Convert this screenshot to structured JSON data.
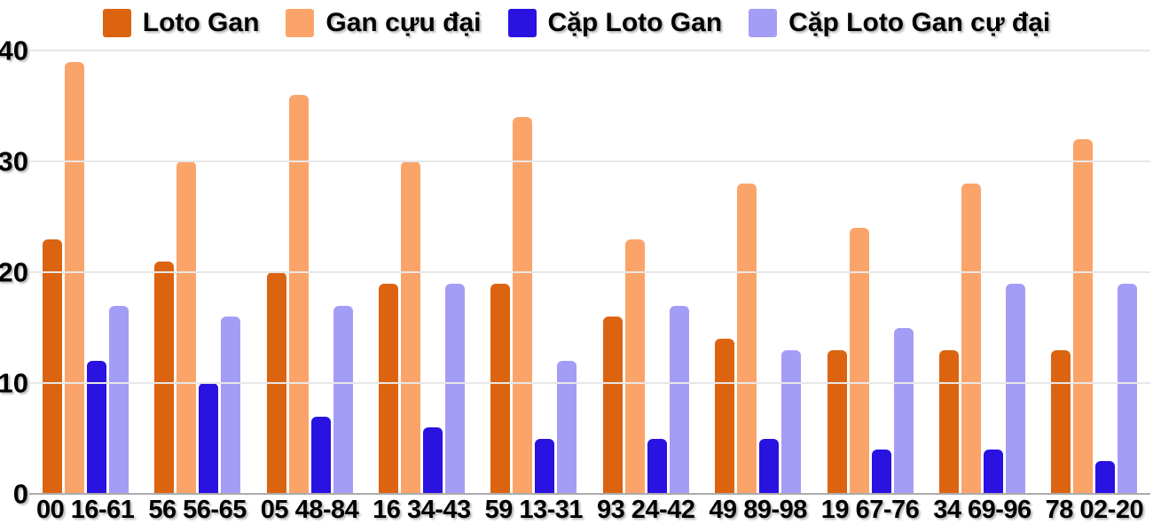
{
  "legend": {
    "items": [
      {
        "label": "Loto Gan",
        "color": "#dc6410",
        "swatch_icon": "legend-swatch-loto-gan"
      },
      {
        "label": "Gan cựu đại",
        "color": "#fba46a",
        "swatch_icon": "legend-swatch-gan-cuu-dai"
      },
      {
        "label": "Cặp Loto Gan",
        "color": "#2a12e0",
        "swatch_icon": "legend-swatch-cap-loto-gan"
      },
      {
        "label": "Cặp Loto Gan cự đại",
        "color": "#a49df6",
        "swatch_icon": "legend-swatch-cap-loto-gan-cu-dai"
      }
    ]
  },
  "axes": {
    "y_ticks": [
      {
        "label": "40",
        "value": 40
      },
      {
        "label": "30",
        "value": 30
      },
      {
        "label": "20",
        "value": 20
      },
      {
        "label": "10",
        "value": 10
      },
      {
        "label": "0",
        "value": 0
      }
    ]
  },
  "colors": {
    "gridline": "#e7e7e7",
    "baseline": "#ababab",
    "text": "#000000",
    "background": "#ffffff"
  },
  "chart_data": {
    "type": "bar",
    "title": "",
    "xlabel": "",
    "ylabel": "",
    "ylim": [
      0,
      40
    ],
    "grid": true,
    "legend_position": "top",
    "categories": [
      "00 16-61",
      "56 56-65",
      "05 48-84",
      "16 34-43",
      "59 13-31",
      "93 24-42",
      "49 89-98",
      "19 67-76",
      "34 69-96",
      "78 02-20"
    ],
    "series": [
      {
        "name": "Loto Gan",
        "color": "#dc6410",
        "values": [
          23,
          21,
          20,
          19,
          19,
          16,
          14,
          13,
          13,
          13
        ]
      },
      {
        "name": "Gan cựu đại",
        "color": "#fba46a",
        "values": [
          39,
          30,
          36,
          30,
          34,
          23,
          28,
          24,
          28,
          32
        ]
      },
      {
        "name": "Cặp Loto Gan",
        "color": "#2a12e0",
        "values": [
          12,
          10,
          7,
          6,
          5,
          5,
          5,
          4,
          4,
          3
        ]
      },
      {
        "name": "Cặp Loto Gan cự đại",
        "color": "#a49df6",
        "values": [
          17,
          16,
          17,
          19,
          12,
          17,
          13,
          15,
          19,
          19
        ]
      }
    ]
  }
}
